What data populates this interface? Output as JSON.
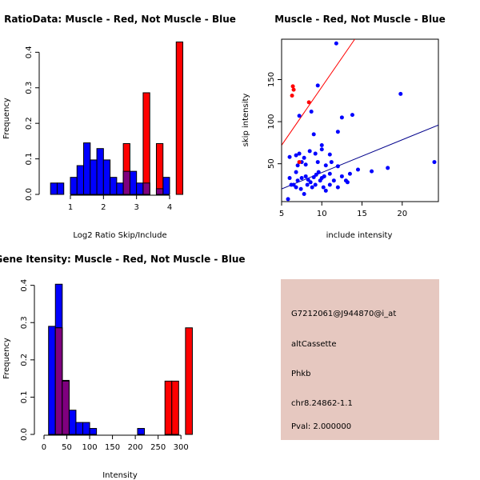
{
  "chart_data": [
    {
      "type": "histogram",
      "title": "RatioData: Muscle - Red, Not Muscle - Blue",
      "xlabel": "Log2 Ratio Skip/Include",
      "ylabel": "Frequency",
      "xlim": [
        0.25,
        4.75
      ],
      "ylim": [
        0,
        0.43
      ],
      "xticks": [
        "1",
        "2",
        "3",
        "4"
      ],
      "yticks": [
        "0.0",
        "0.1",
        "0.2",
        "0.3",
        "0.4"
      ],
      "series": [
        {
          "name": "Not Muscle",
          "color": "#0000ff",
          "bins": [
            {
              "x0": 0.4,
              "x1": 0.6,
              "v": 0.032
            },
            {
              "x0": 0.6,
              "x1": 0.8,
              "v": 0.032
            },
            {
              "x0": 1.0,
              "x1": 1.2,
              "v": 0.048
            },
            {
              "x0": 1.2,
              "x1": 1.4,
              "v": 0.081
            },
            {
              "x0": 1.4,
              "x1": 1.6,
              "v": 0.145
            },
            {
              "x0": 1.6,
              "x1": 1.8,
              "v": 0.097
            },
            {
              "x0": 1.8,
              "x1": 2.0,
              "v": 0.129
            },
            {
              "x0": 2.0,
              "x1": 2.2,
              "v": 0.097
            },
            {
              "x0": 2.2,
              "x1": 2.4,
              "v": 0.048
            },
            {
              "x0": 2.4,
              "x1": 2.6,
              "v": 0.032
            },
            {
              "x0": 2.6,
              "x1": 2.8,
              "v": 0.065
            },
            {
              "x0": 2.8,
              "x1": 3.0,
              "v": 0.065
            },
            {
              "x0": 3.0,
              "x1": 3.2,
              "v": 0.032
            },
            {
              "x0": 3.2,
              "x1": 3.4,
              "v": 0.032
            },
            {
              "x0": 3.6,
              "x1": 3.8,
              "v": 0.016
            },
            {
              "x0": 3.8,
              "x1": 4.0,
              "v": 0.048
            }
          ]
        },
        {
          "name": "Muscle",
          "color": "#ff0000",
          "bins": [
            {
              "x0": 2.6,
              "x1": 2.8,
              "v": 0.143
            },
            {
              "x0": 3.2,
              "x1": 3.4,
              "v": 0.286
            },
            {
              "x0": 3.6,
              "x1": 3.8,
              "v": 0.143
            },
            {
              "x0": 4.2,
              "x1": 4.4,
              "v": 0.429
            }
          ]
        }
      ]
    },
    {
      "type": "scatter",
      "title": "Muscle - Red, Not Muscle - Blue",
      "xlabel": "include intensity",
      "ylabel": "skip intensity",
      "xlim": [
        5,
        24.5
      ],
      "ylim": [
        5,
        198
      ],
      "xticks": [
        "5",
        "10",
        "15",
        "20"
      ],
      "yticks": [
        "50",
        "100",
        "150"
      ],
      "series": [
        {
          "name": "Not Muscle",
          "color": "#0000ff",
          "points": [
            [
              11.8,
              193
            ],
            [
              9.5,
              143
            ],
            [
              12,
              88
            ],
            [
              9,
              85
            ],
            [
              12.5,
              105
            ],
            [
              13.8,
              108
            ],
            [
              19.8,
              133
            ],
            [
              7.2,
              107
            ],
            [
              8.7,
              112
            ],
            [
              7.2,
              62
            ],
            [
              8.5,
              65
            ],
            [
              9.2,
              62
            ],
            [
              10,
              72
            ],
            [
              10,
              67
            ],
            [
              11,
              61
            ],
            [
              6,
              58
            ],
            [
              6.8,
              60
            ],
            [
              7.8,
              57
            ],
            [
              7.5,
              52
            ],
            [
              7,
              48
            ],
            [
              8,
              49
            ],
            [
              9.5,
              52
            ],
            [
              10.5,
              48
            ],
            [
              11.2,
              52
            ],
            [
              12,
              47
            ],
            [
              14.5,
              43
            ],
            [
              16.2,
              41
            ],
            [
              18.2,
              45
            ],
            [
              24,
              52
            ],
            [
              6,
              33
            ],
            [
              6.5,
              25
            ],
            [
              7,
              30
            ],
            [
              7.5,
              33
            ],
            [
              8,
              35
            ],
            [
              8.3,
              31
            ],
            [
              8.6,
              28
            ],
            [
              9,
              34
            ],
            [
              9.3,
              37
            ],
            [
              9.6,
              40
            ],
            [
              10,
              33
            ],
            [
              10.3,
              35
            ],
            [
              11,
              38
            ],
            [
              11.5,
              30
            ],
            [
              12.5,
              35
            ],
            [
              13.5,
              38
            ],
            [
              13,
              30
            ],
            [
              6.2,
              25
            ],
            [
              6.8,
              22
            ],
            [
              7.4,
              20
            ],
            [
              7.8,
              14
            ],
            [
              8.2,
              25
            ],
            [
              8.8,
              22
            ],
            [
              9.2,
              25
            ],
            [
              9.8,
              30
            ],
            [
              10.2,
              22
            ],
            [
              10.5,
              18
            ],
            [
              11,
              25
            ],
            [
              12,
              22
            ],
            [
              13.2,
              28
            ],
            [
              5.8,
              8
            ],
            [
              6.8,
              40
            ]
          ]
        },
        {
          "name": "Muscle",
          "color": "#ff0000",
          "points": [
            [
              6.4,
              142
            ],
            [
              6.5,
              138
            ],
            [
              6.3,
              131
            ],
            [
              8.4,
              123
            ],
            [
              7.2,
              52
            ]
          ]
        }
      ],
      "fit_lines": [
        {
          "name": "Muscle fit",
          "color": "#ff0000",
          "p1": [
            5,
            72
          ],
          "p2": [
            14.1,
            198
          ]
        },
        {
          "name": "Not Muscle fit",
          "color": "#00008b",
          "p1": [
            5,
            20
          ],
          "p2": [
            24.5,
            96
          ]
        }
      ]
    },
    {
      "type": "histogram",
      "title": "Gene Itensity: Muscle - Red, Not Muscle - Blue",
      "xlabel": "Intensity",
      "ylabel": "Frequency",
      "xlim": [
        -7,
        340
      ],
      "ylim": [
        0,
        0.41
      ],
      "xticks": [
        "0",
        "50",
        "100",
        "150",
        "200",
        "250",
        "300"
      ],
      "yticks": [
        "0.0",
        "0.1",
        "0.2",
        "0.3",
        "0.4"
      ],
      "series": [
        {
          "name": "Not Muscle",
          "color": "#0000ff",
          "bins": [
            {
              "x0": 10,
              "x1": 25,
              "v": 0.29
            },
            {
              "x0": 25,
              "x1": 40,
              "v": 0.403
            },
            {
              "x0": 40,
              "x1": 55,
              "v": 0.145
            },
            {
              "x0": 55,
              "x1": 70,
              "v": 0.065
            },
            {
              "x0": 70,
              "x1": 85,
              "v": 0.032
            },
            {
              "x0": 85,
              "x1": 100,
              "v": 0.032
            },
            {
              "x0": 100,
              "x1": 115,
              "v": 0.016
            },
            {
              "x0": 205,
              "x1": 220,
              "v": 0.016
            }
          ]
        },
        {
          "name": "Muscle",
          "color": "#ff0000",
          "bins": [
            {
              "x0": 25,
              "x1": 40,
              "v": 0.286
            },
            {
              "x0": 40,
              "x1": 55,
              "v": 0.143
            },
            {
              "x0": 265,
              "x1": 280,
              "v": 0.143
            },
            {
              "x0": 280,
              "x1": 295,
              "v": 0.143
            },
            {
              "x0": 310,
              "x1": 325,
              "v": 0.286
            }
          ]
        }
      ]
    }
  ],
  "info_panel": {
    "background": "#e6c8c0",
    "probe": "G7212061@J944870@i_at",
    "event_type": "altCassette",
    "gene": "Phkb",
    "location": "chr8.24862-1.1",
    "pval": "Pval: 2.000000",
    "pval_color": "#cc0000"
  }
}
